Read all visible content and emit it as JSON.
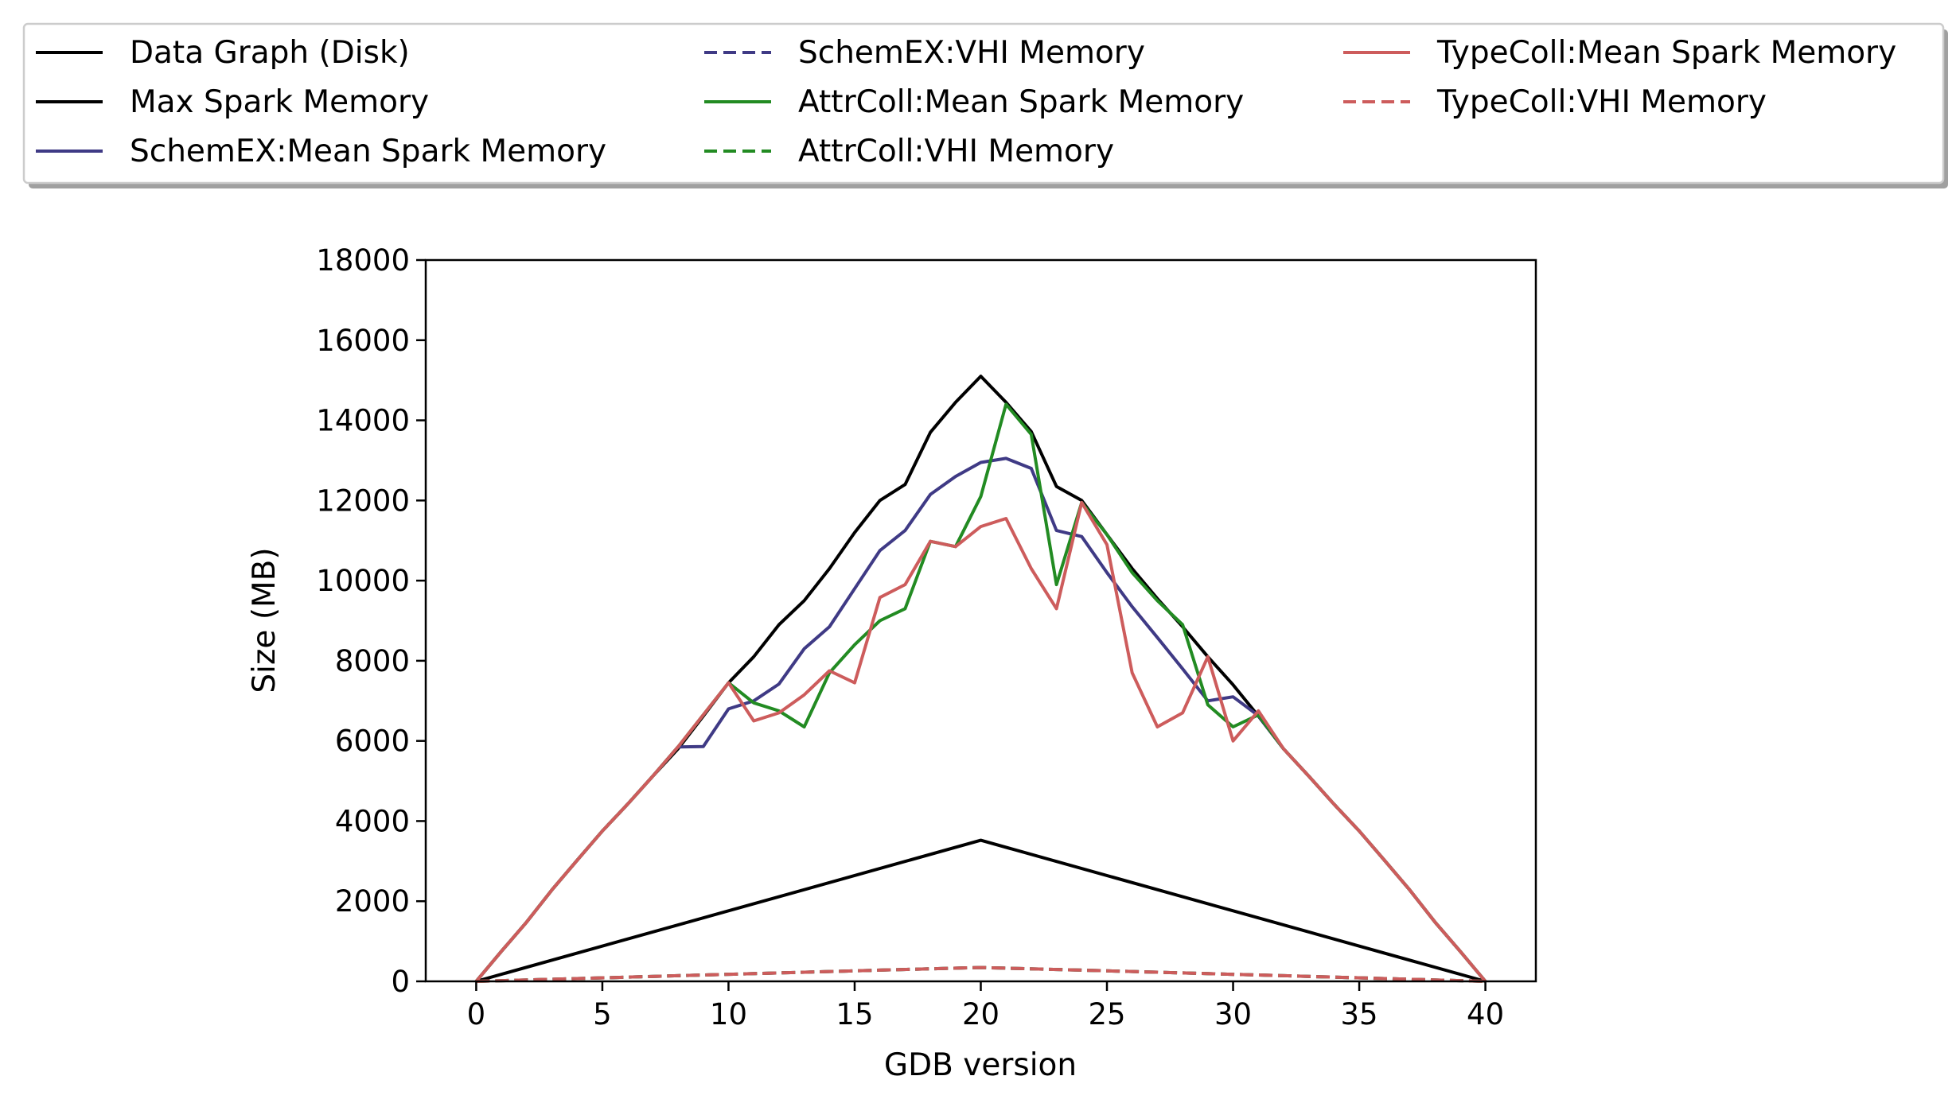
{
  "chart_data": {
    "type": "line",
    "xlabel": "GDB version",
    "ylabel": "Size (MB)",
    "xlim": [
      -2,
      42
    ],
    "ylim": [
      0,
      18000
    ],
    "xticks": [
      0,
      5,
      10,
      15,
      20,
      25,
      30,
      35,
      40
    ],
    "yticks": [
      0,
      2000,
      4000,
      6000,
      8000,
      10000,
      12000,
      14000,
      16000,
      18000
    ],
    "grid": false,
    "legend_position": "top, above plot, 3 columns",
    "series": [
      {
        "name": "Data Graph (Disk)",
        "color": "#000000",
        "style": "solid",
        "x": [
          0,
          20,
          40
        ],
        "y": [
          0,
          3520,
          0
        ]
      },
      {
        "name": "Max Spark Memory",
        "color": "#000000",
        "style": "solid",
        "x": [
          0,
          1,
          2,
          3,
          4,
          5,
          6,
          7,
          8,
          9,
          10,
          11,
          12,
          13,
          14,
          15,
          16,
          17,
          18,
          19,
          20,
          21,
          22,
          23,
          24,
          25,
          26,
          27,
          28,
          29,
          30,
          31,
          32,
          33,
          34,
          35,
          36,
          37,
          38,
          39,
          40
        ],
        "y": [
          0,
          750,
          1480,
          2280,
          3020,
          3750,
          4420,
          5120,
          5800,
          6620,
          7450,
          8100,
          8900,
          9500,
          10300,
          11200,
          12000,
          12400,
          13700,
          14450,
          15100,
          14450,
          13720,
          12350,
          12000,
          11150,
          10300,
          9550,
          8850,
          8100,
          7400,
          6620,
          5800,
          5120,
          4420,
          3750,
          3020,
          2280,
          1480,
          750,
          0
        ]
      },
      {
        "name": "SchemEX:Mean Spark Memory",
        "color": "#3f3a85",
        "style": "solid",
        "x": [
          0,
          1,
          2,
          3,
          4,
          5,
          6,
          7,
          8,
          9,
          10,
          11,
          12,
          13,
          14,
          15,
          16,
          17,
          18,
          19,
          20,
          21,
          22,
          23,
          24,
          25,
          26,
          27,
          28,
          29,
          30,
          31,
          32,
          33,
          34,
          35,
          36,
          37,
          38,
          39,
          40
        ],
        "y": [
          0,
          750,
          1480,
          2280,
          3020,
          3750,
          4420,
          5120,
          5850,
          5860,
          6800,
          7000,
          7420,
          8300,
          8850,
          9800,
          10750,
          11250,
          12150,
          12600,
          12950,
          13050,
          12800,
          11250,
          11100,
          10200,
          9350,
          8580,
          7800,
          7000,
          7100,
          6630,
          5800,
          5120,
          4420,
          3750,
          3020,
          2280,
          1480,
          750,
          0
        ]
      },
      {
        "name": "SchemEX:VHI Memory",
        "color": "#3f3a85",
        "style": "dashed",
        "x": [
          0,
          4,
          8,
          12,
          16,
          20,
          24,
          28,
          32,
          36,
          40
        ],
        "y": [
          0,
          70,
          140,
          210,
          280,
          345,
          280,
          210,
          140,
          70,
          0
        ]
      },
      {
        "name": "AttrColl:Mean Spark Memory",
        "color": "#228b22",
        "style": "solid",
        "x": [
          0,
          1,
          2,
          3,
          4,
          5,
          6,
          7,
          8,
          9,
          10,
          11,
          12,
          13,
          14,
          15,
          16,
          17,
          18,
          19,
          20,
          21,
          22,
          23,
          24,
          25,
          26,
          27,
          28,
          29,
          30,
          31,
          32,
          33,
          34,
          35,
          36,
          37,
          38,
          39,
          40
        ],
        "y": [
          0,
          750,
          1480,
          2280,
          3020,
          3750,
          4420,
          5120,
          5850,
          6650,
          7450,
          6950,
          6750,
          6350,
          7700,
          8400,
          9000,
          9300,
          10980,
          10850,
          12100,
          14400,
          13650,
          9900,
          11950,
          11150,
          10200,
          9500,
          8900,
          6900,
          6350,
          6650,
          5800,
          5120,
          4420,
          3750,
          3020,
          2280,
          1480,
          750,
          0
        ]
      },
      {
        "name": "AttrColl:VHI Memory",
        "color": "#228b22",
        "style": "dashed",
        "x": [
          0,
          4,
          8,
          12,
          16,
          20,
          24,
          28,
          32,
          36,
          40
        ],
        "y": [
          0,
          70,
          140,
          210,
          280,
          345,
          280,
          210,
          140,
          70,
          0
        ]
      },
      {
        "name": "TypeColl:Mean Spark Memory",
        "color": "#cd5c5c",
        "style": "solid",
        "x": [
          0,
          1,
          2,
          3,
          4,
          5,
          6,
          7,
          8,
          9,
          10,
          11,
          12,
          13,
          14,
          15,
          16,
          17,
          18,
          19,
          20,
          21,
          22,
          23,
          24,
          25,
          26,
          27,
          28,
          29,
          30,
          31,
          32,
          33,
          34,
          35,
          36,
          37,
          38,
          39,
          40
        ],
        "y": [
          0,
          750,
          1480,
          2280,
          3020,
          3750,
          4420,
          5120,
          5850,
          6650,
          7450,
          6500,
          6700,
          7150,
          7750,
          7450,
          9580,
          9900,
          10980,
          10850,
          11350,
          11550,
          10300,
          9300,
          11950,
          10900,
          7700,
          6350,
          6700,
          8100,
          6000,
          6750,
          5800,
          5120,
          4420,
          3750,
          3020,
          2280,
          1480,
          750,
          0
        ]
      },
      {
        "name": "TypeColl:VHI Memory",
        "color": "#cd5c5c",
        "style": "dashed",
        "x": [
          0,
          4,
          8,
          12,
          16,
          20,
          24,
          28,
          32,
          36,
          40
        ],
        "y": [
          0,
          70,
          140,
          210,
          280,
          345,
          280,
          210,
          140,
          70,
          0
        ]
      }
    ]
  }
}
